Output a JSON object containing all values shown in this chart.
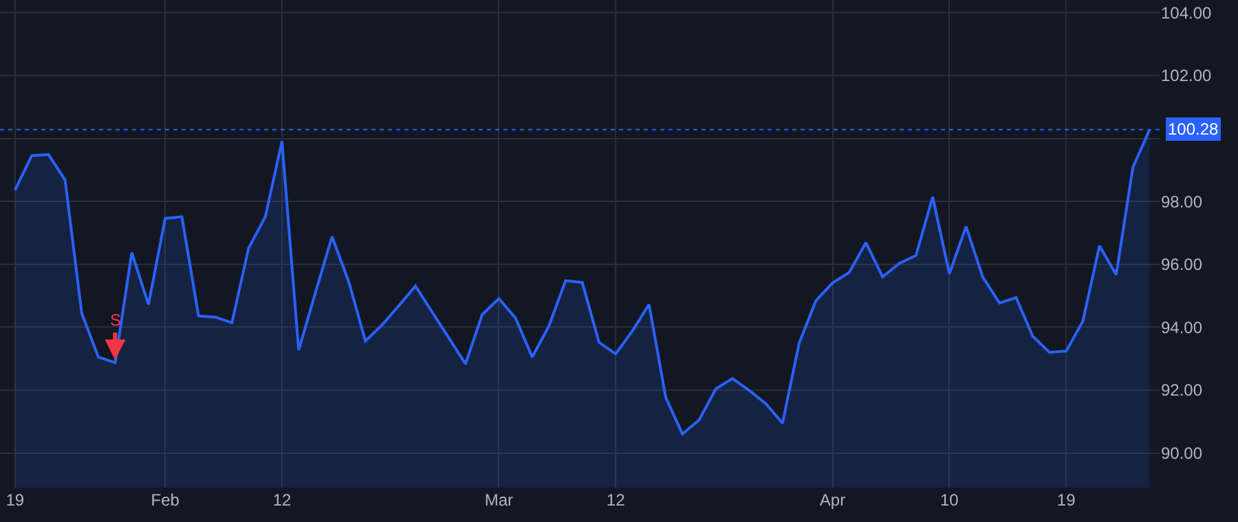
{
  "chart_data": {
    "type": "area",
    "categories": [
      "19",
      null,
      null,
      null,
      null,
      null,
      null,
      null,
      null,
      "Feb",
      null,
      null,
      null,
      null,
      null,
      null,
      "12",
      null,
      null,
      null,
      null,
      null,
      null,
      null,
      null,
      null,
      null,
      null,
      null,
      "Mar",
      null,
      null,
      null,
      null,
      null,
      null,
      "12",
      null,
      null,
      null,
      null,
      null,
      null,
      null,
      null,
      null,
      null,
      null,
      null,
      "Apr",
      null,
      null,
      null,
      null,
      null,
      null,
      "10",
      null,
      null,
      null,
      null,
      null,
      null,
      "19",
      null,
      null,
      null,
      null,
      null
    ],
    "series": [
      {
        "color": "#2962ff",
        "values": [
          98.36,
          99.45,
          99.49,
          98.68,
          94.44,
          93.05,
          92.87,
          96.37,
          94.72,
          97.46,
          97.51,
          94.36,
          94.32,
          94.14,
          96.51,
          97.51,
          99.91,
          93.27,
          95.09,
          96.88,
          95.45,
          93.56,
          94.07,
          94.68,
          95.31,
          94.48,
          93.66,
          92.83,
          94.4,
          94.91,
          94.29,
          93.05,
          94.04,
          95.48,
          95.42,
          93.52,
          93.15,
          93.88,
          94.72,
          91.77,
          90.61,
          91.05,
          92.04,
          92.37,
          91.99,
          91.57,
          90.95,
          93.5,
          94.84,
          95.41,
          95.74,
          96.69,
          95.6,
          96.03,
          96.28,
          98.14,
          95.7,
          97.2,
          95.6,
          94.77,
          94.94,
          93.71,
          93.2,
          93.24,
          94.19,
          96.59,
          95.67,
          99.08,
          100.28
        ]
      }
    ],
    "ylim": [
      88.9,
      104.4
    ],
    "yticks": [
      {
        "value": 90,
        "label": "90.00"
      },
      {
        "value": 92,
        "label": "92.00"
      },
      {
        "value": 94,
        "label": "94.00"
      },
      {
        "value": 96,
        "label": "96.00"
      },
      {
        "value": 98,
        "label": "98.00"
      },
      {
        "value": 100,
        "label": null
      },
      {
        "value": 102,
        "label": "102.00"
      },
      {
        "value": 104,
        "label": "104.00"
      }
    ],
    "grid": true,
    "ref_lines": [
      {
        "axis": "y",
        "value": 100.28,
        "label": "100.28",
        "color": "#2962ff",
        "line_style": "dotted"
      }
    ],
    "annotations": [
      {
        "text": "S",
        "y": 92.87
      }
    ]
  }
}
